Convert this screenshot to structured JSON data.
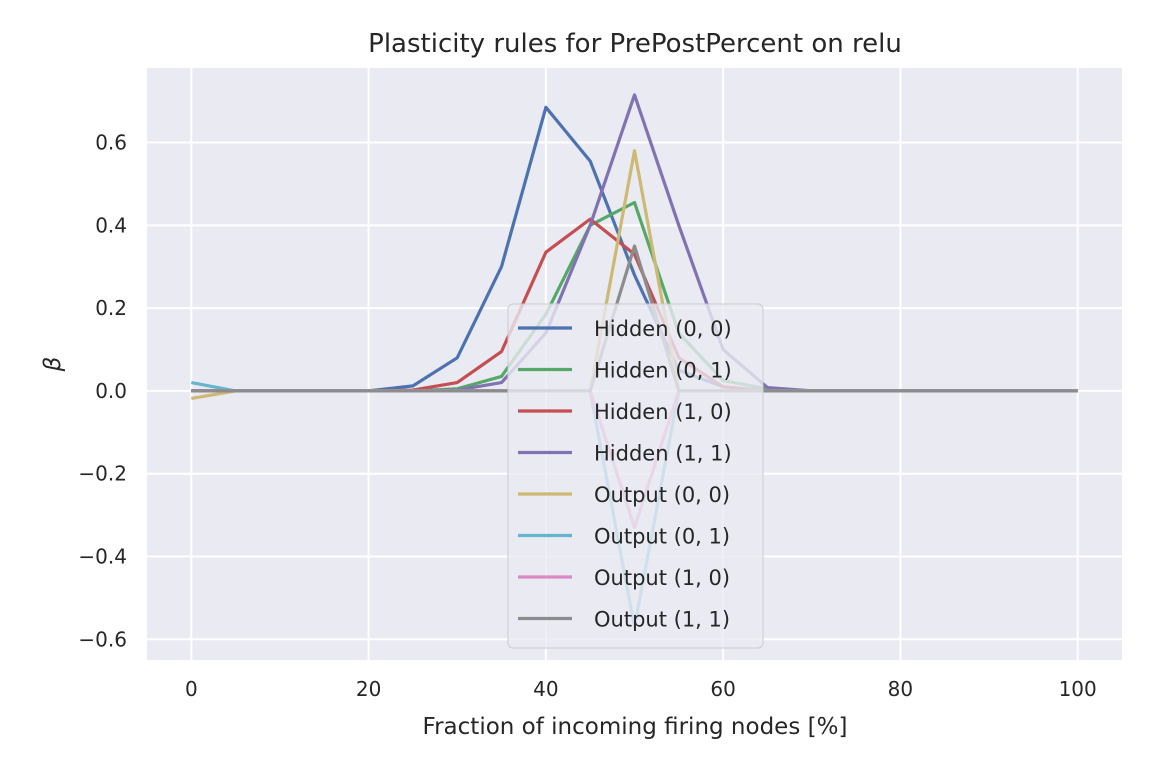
{
  "chart_data": {
    "type": "line",
    "title": "Plasticity rules for PrePostPercent on relu",
    "xlabel": "Fraction of incoming firing nodes [%]",
    "ylabel": "β",
    "xlim": [
      -5,
      105
    ],
    "ylim": [
      -0.65,
      0.78
    ],
    "xticks": [
      0,
      20,
      40,
      60,
      80,
      100
    ],
    "yticks": [
      -0.6,
      -0.4,
      -0.2,
      0.0,
      0.2,
      0.4,
      0.6
    ],
    "ytick_labels": [
      "−0.6",
      "−0.4",
      "−0.2",
      "0.0",
      "0.2",
      "0.4",
      "0.6"
    ],
    "grid": true,
    "legend_position": "lower-center",
    "x": [
      0,
      5,
      10,
      15,
      20,
      25,
      30,
      35,
      40,
      45,
      50,
      55,
      60,
      65,
      70,
      75,
      80,
      85,
      90,
      95,
      100
    ],
    "series": [
      {
        "name": "Hidden (0, 0)",
        "color": "#4c72b0",
        "values": [
          0,
          0,
          0,
          0,
          0,
          0.012,
          0.08,
          0.3,
          0.685,
          0.555,
          0.28,
          0.05,
          0.01,
          0,
          0,
          0,
          0,
          0,
          0,
          0,
          0
        ]
      },
      {
        "name": "Hidden (0, 1)",
        "color": "#55a868",
        "values": [
          0,
          0,
          0,
          0,
          0,
          0,
          0.005,
          0.035,
          0.185,
          0.4,
          0.455,
          0.14,
          0.025,
          0.005,
          0,
          0,
          0,
          0,
          0,
          0,
          0
        ]
      },
      {
        "name": "Hidden (1, 0)",
        "color": "#c44e52",
        "values": [
          0,
          0,
          0,
          0,
          0,
          0.002,
          0.02,
          0.095,
          0.335,
          0.415,
          0.33,
          0.08,
          0.01,
          0,
          0,
          0,
          0,
          0,
          0,
          0,
          0
        ]
      },
      {
        "name": "Hidden (1, 1)",
        "color": "#8172b2",
        "values": [
          0,
          0,
          0,
          0,
          0,
          0,
          0.002,
          0.02,
          0.14,
          0.4,
          0.715,
          0.4,
          0.1,
          0.008,
          0,
          0,
          0,
          0,
          0,
          0,
          0
        ]
      },
      {
        "name": "Output (0, 0)",
        "color": "#ccb974",
        "values": [
          -0.018,
          0,
          0,
          0,
          0,
          0,
          0,
          0,
          0,
          0,
          0.58,
          0,
          0,
          0,
          0,
          0,
          0,
          0,
          0,
          0,
          0
        ]
      },
      {
        "name": "Output (0, 1)",
        "color": "#64b5cd",
        "values": [
          0.02,
          0,
          0,
          0,
          0,
          0,
          0,
          0,
          0,
          0,
          -0.57,
          0,
          0,
          0,
          0,
          0,
          0,
          0,
          0,
          0,
          0
        ]
      },
      {
        "name": "Output (1, 0)",
        "color": "#da8bc3",
        "values": [
          0,
          0,
          0,
          0,
          0,
          0,
          0,
          0,
          0,
          0,
          -0.33,
          0,
          0,
          0,
          0,
          0,
          0,
          0,
          0,
          0,
          0
        ]
      },
      {
        "name": "Output (1, 1)",
        "color": "#8c8c8c",
        "values": [
          0,
          0,
          0,
          0,
          0,
          0,
          0,
          0,
          0,
          0,
          0.35,
          0,
          0,
          0,
          0,
          0,
          0,
          0,
          0,
          0,
          0
        ]
      }
    ]
  }
}
